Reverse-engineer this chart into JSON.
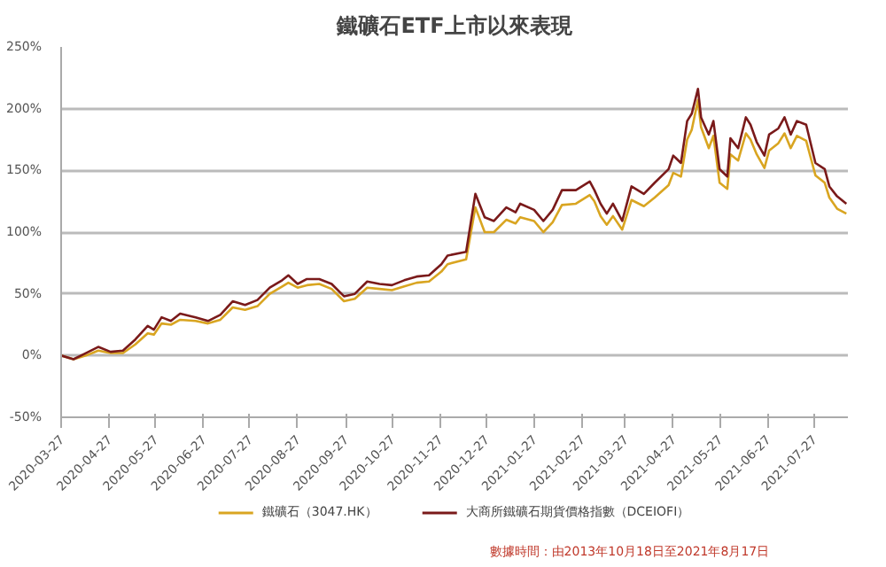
{
  "chart_data": {
    "type": "line",
    "title": "鐵礦石ETF上市以來表現",
    "x": [
      "2020-03-27",
      "2020-04-04",
      "2020-04-12",
      "2020-04-20",
      "2020-04-28",
      "2020-05-06",
      "2020-05-14",
      "2020-05-22",
      "2020-05-26",
      "2020-05-31",
      "2020-06-06",
      "2020-06-12",
      "2020-06-22",
      "2020-06-30",
      "2020-07-08",
      "2020-07-16",
      "2020-07-24",
      "2020-08-01",
      "2020-08-09",
      "2020-08-17",
      "2020-08-21",
      "2020-08-27",
      "2020-09-02",
      "2020-09-10",
      "2020-09-18",
      "2020-09-26",
      "2020-10-03",
      "2020-10-11",
      "2020-10-19",
      "2020-10-27",
      "2020-11-04",
      "2020-11-12",
      "2020-11-20",
      "2020-11-28",
      "2020-12-02",
      "2020-12-14",
      "2020-12-20",
      "2020-12-26",
      "2021-01-01",
      "2021-01-09",
      "2021-01-15",
      "2021-01-18",
      "2021-01-27",
      "2021-02-02",
      "2021-02-08",
      "2021-02-14",
      "2021-02-23",
      "2021-03-04",
      "2021-03-07",
      "2021-03-11",
      "2021-03-15",
      "2021-03-19",
      "2021-03-25",
      "2021-03-31",
      "2021-04-08",
      "2021-04-15",
      "2021-04-24",
      "2021-04-27",
      "2021-05-02",
      "2021-05-06",
      "2021-05-09",
      "2021-05-13",
      "2021-05-15",
      "2021-05-20",
      "2021-05-23",
      "2021-05-27",
      "2021-06-01",
      "2021-06-03",
      "2021-06-08",
      "2021-06-13",
      "2021-06-16",
      "2021-06-20",
      "2021-06-25",
      "2021-06-28",
      "2021-07-04",
      "2021-07-08",
      "2021-07-12",
      "2021-07-16",
      "2021-07-22",
      "2021-07-28",
      "2021-08-03",
      "2021-08-06",
      "2021-08-11",
      "2021-08-17"
    ],
    "series": [
      {
        "name": "鐵礦石（3047.HK）",
        "color": "#d9a521",
        "values": [
          0,
          -3,
          0,
          4,
          2,
          2,
          9,
          18,
          17,
          26,
          25,
          29,
          28,
          26,
          29,
          39,
          37,
          40,
          50,
          56,
          59,
          55,
          57,
          58,
          54,
          44,
          46,
          55,
          54,
          53,
          56,
          59,
          60,
          68,
          74,
          78,
          120,
          100,
          100,
          110,
          107,
          112,
          109,
          100,
          108,
          122,
          123,
          130,
          125,
          113,
          106,
          113,
          102,
          126,
          121,
          128,
          138,
          148,
          145,
          175,
          183,
          207,
          185,
          168,
          178,
          140,
          135,
          163,
          158,
          180,
          175,
          163,
          152,
          166,
          172,
          180,
          168,
          178,
          174,
          146,
          140,
          128,
          119,
          115
        ]
      },
      {
        "name": "大商所鐵礦石期貨價格指數（DCEIOFI）",
        "color": "#7a1a1a",
        "values": [
          0,
          -3,
          2,
          7,
          3,
          4,
          13,
          24,
          21,
          31,
          28,
          34,
          31,
          28,
          33,
          44,
          41,
          45,
          55,
          61,
          65,
          58,
          62,
          62,
          58,
          48,
          50,
          60,
          58,
          57,
          61,
          64,
          65,
          74,
          81,
          84,
          131,
          112,
          109,
          120,
          116,
          123,
          118,
          109,
          118,
          134,
          134,
          141,
          134,
          123,
          115,
          123,
          109,
          137,
          131,
          140,
          151,
          162,
          156,
          190,
          196,
          216,
          193,
          179,
          190,
          151,
          145,
          176,
          168,
          193,
          187,
          173,
          162,
          179,
          184,
          193,
          179,
          190,
          187,
          156,
          151,
          137,
          129,
          123
        ]
      }
    ],
    "xlim": [
      "2020-03-27",
      "2021-08-18"
    ],
    "xticks": [
      "2020-03-27",
      "2020-04-27",
      "2020-05-27",
      "2020-06-27",
      "2020-07-27",
      "2020-08-27",
      "2020-09-27",
      "2020-10-27",
      "2020-11-27",
      "2020-12-27",
      "2021-01-27",
      "2021-02-27",
      "2021-03-27",
      "2021-04-27",
      "2021-05-27",
      "2021-06-27",
      "2021-07-27"
    ],
    "ylim": [
      -50,
      250
    ],
    "yticks": [
      {
        "value": -50,
        "label": "-50%"
      },
      {
        "value": 0,
        "label": "0%"
      },
      {
        "value": 50,
        "label": "50%"
      },
      {
        "value": 100,
        "label": "100%"
      },
      {
        "value": 150,
        "label": "150%"
      },
      {
        "value": 200,
        "label": "200%"
      },
      {
        "value": 250,
        "label": "250%"
      }
    ],
    "grid": "y",
    "legend": "bottom",
    "marker": "none",
    "line_style": "solid",
    "annotations": [
      "數據時間：由2013年10月18日至2021年8月17日"
    ]
  }
}
